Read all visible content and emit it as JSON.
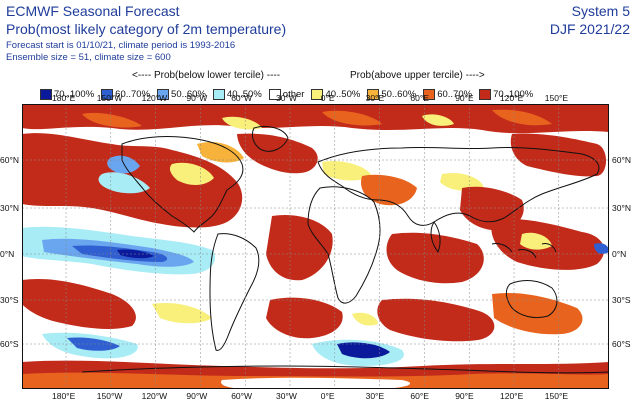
{
  "header": {
    "title": "ECMWF Seasonal Forecast",
    "subtitle": "Prob(most likely category of 2m temperature)",
    "forecast_info": "Forecast start is 01/10/21, climate period is 1993-2016",
    "ensemble_info": "Ensemble size = 51, climate size = 600",
    "system": "System 5",
    "season": "DJF 2021/22"
  },
  "legend": {
    "below_title": "<---- Prob(below lower tercile) ----",
    "above_title": "Prob(above upper tercile) ---->",
    "items": [
      {
        "label": "70..100%",
        "color": "#0a1a9a"
      },
      {
        "label": "60..70%",
        "color": "#2f5fd0"
      },
      {
        "label": "50..60%",
        "color": "#6aa6f0"
      },
      {
        "label": "40..50%",
        "color": "#a8ecf6"
      },
      {
        "label": "other",
        "color": "#ffffff"
      },
      {
        "label": "40..50%",
        "color": "#f8f07a"
      },
      {
        "label": "50..60%",
        "color": "#f6b23a"
      },
      {
        "label": "60..70%",
        "color": "#e8641e"
      },
      {
        "label": "70..100%",
        "color": "#c22a1a"
      }
    ]
  },
  "map": {
    "lon_labels": [
      "180°E",
      "150°W",
      "120°W",
      "90°W",
      "60°W",
      "30°W",
      "0°E",
      "30°E",
      "60°E",
      "90°E",
      "120°E",
      "150°E"
    ],
    "lat_labels_left": [
      "60°N",
      "30°N",
      "0°N",
      "30°S",
      "60°S"
    ],
    "lat_labels_right": [
      "60°N",
      "30°N",
      "0°N",
      "30°S",
      "60°S"
    ]
  }
}
